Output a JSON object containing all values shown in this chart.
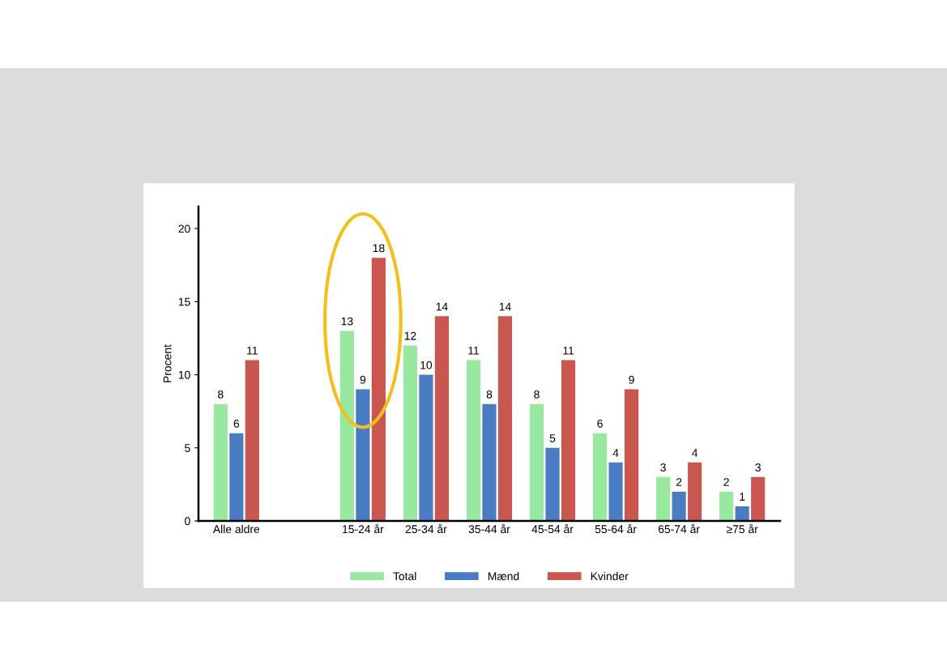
{
  "chart_data": {
    "type": "bar",
    "ylabel": "Procent",
    "categories": [
      "Alle aldre",
      null,
      "15-24 år",
      "25-34 år",
      "35-44 år",
      "45-54 år",
      "55-64 år",
      "65-74 år",
      "≥75 år"
    ],
    "series": [
      {
        "name": "Total",
        "color": "#98e8a0",
        "values": [
          8,
          null,
          13,
          12,
          11,
          8,
          6,
          3,
          2
        ]
      },
      {
        "name": "Mænd",
        "color": "#4a7cc4",
        "values": [
          6,
          null,
          9,
          10,
          8,
          5,
          4,
          2,
          1
        ]
      },
      {
        "name": "Kvinder",
        "color": "#c9574f",
        "values": [
          11,
          null,
          18,
          14,
          14,
          11,
          9,
          4,
          3
        ]
      }
    ],
    "ylim": [
      0,
      21.5
    ],
    "yticks": [
      0,
      5,
      10,
      15,
      20
    ],
    "grid": false,
    "legend": "bottom",
    "data_labels": true
  }
}
